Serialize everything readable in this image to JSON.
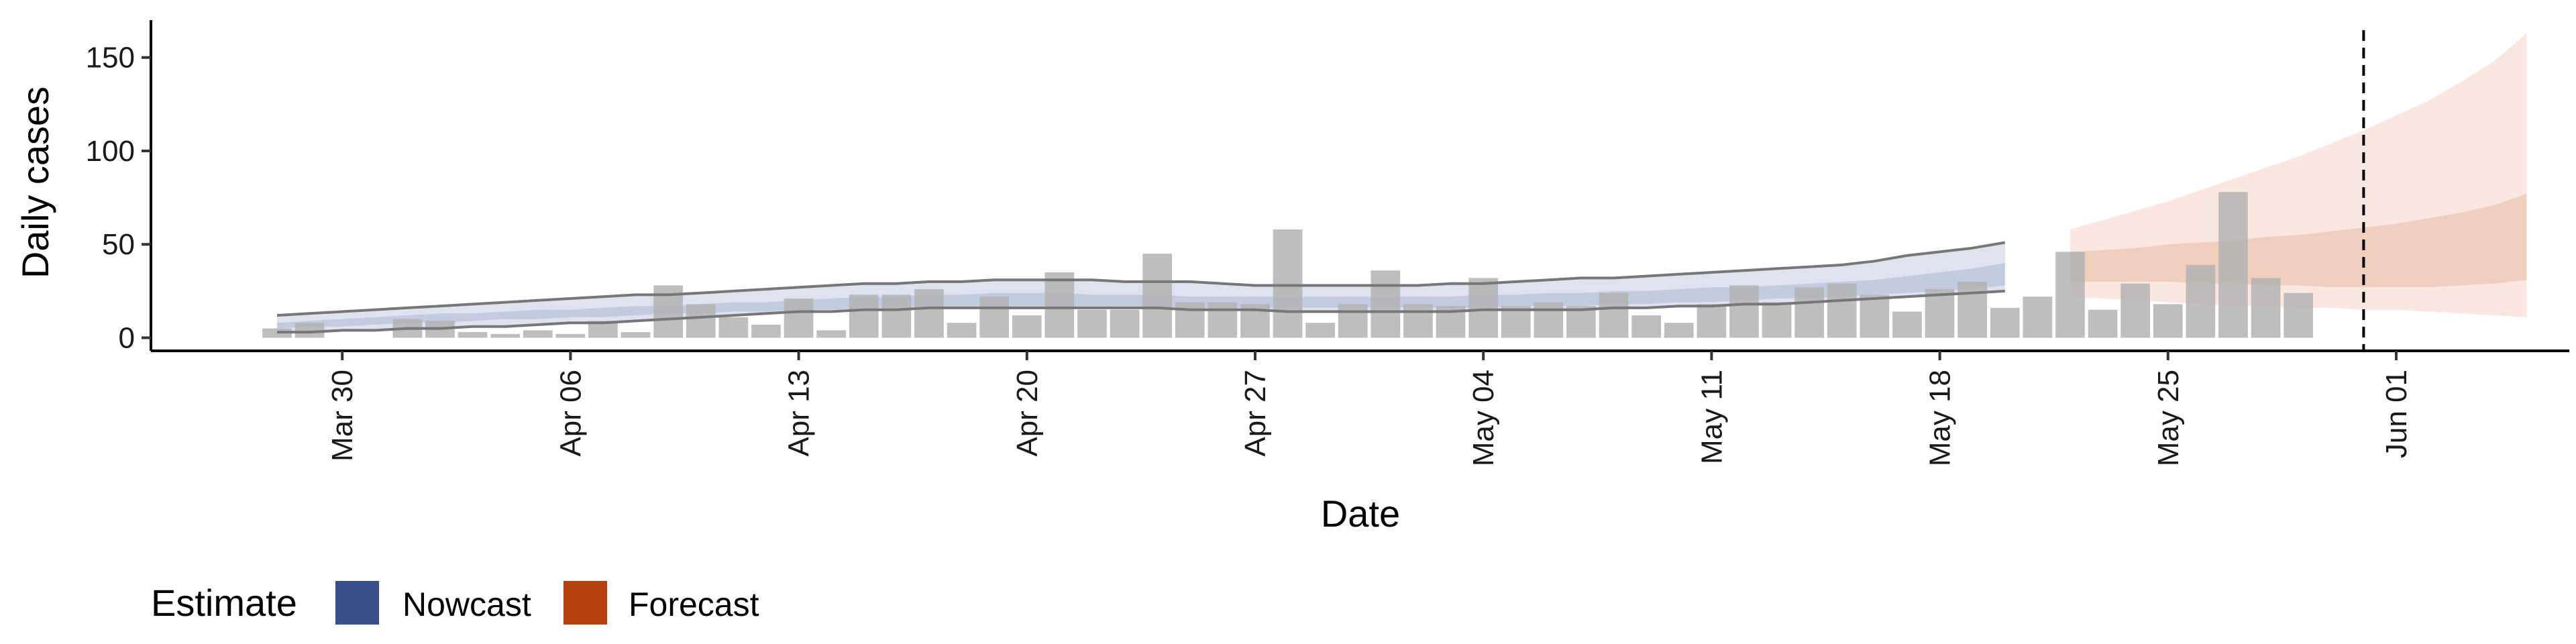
{
  "chart_data": {
    "type": "bar",
    "xlabel": "Date",
    "ylabel": "Daily cases",
    "ylim": [
      -7,
      170
    ],
    "y_ticks": [
      0,
      50,
      100,
      150
    ],
    "x_start": "2020-03-28",
    "x_ticks": [
      {
        "date": "2020-03-30",
        "label": "Mar 30"
      },
      {
        "date": "2020-04-06",
        "label": "Apr 06"
      },
      {
        "date": "2020-04-13",
        "label": "Apr 13"
      },
      {
        "date": "2020-04-20",
        "label": "Apr 20"
      },
      {
        "date": "2020-04-27",
        "label": "Apr 27"
      },
      {
        "date": "2020-05-04",
        "label": "May 04"
      },
      {
        "date": "2020-05-11",
        "label": "May 11"
      },
      {
        "date": "2020-05-18",
        "label": "May 18"
      },
      {
        "date": "2020-05-25",
        "label": "May 25"
      },
      {
        "date": "2020-06-01",
        "label": "Jun 01"
      }
    ],
    "cases": [
      5,
      8,
      0,
      0,
      10,
      9,
      3,
      2,
      4,
      2,
      9,
      3,
      28,
      18,
      11,
      7,
      21,
      4,
      23,
      23,
      26,
      8,
      22,
      12,
      35,
      15,
      15,
      45,
      19,
      19,
      18,
      58,
      8,
      18,
      36,
      18,
      17,
      32,
      17,
      19,
      17,
      24,
      12,
      8,
      18,
      28,
      19,
      27,
      29,
      23,
      14,
      26,
      30,
      16,
      22,
      46,
      15,
      29,
      18,
      39,
      78,
      32,
      24
    ],
    "nowcast": {
      "start": "2020-03-28",
      "upper90": [
        12,
        13,
        14,
        15,
        16,
        17,
        18,
        19,
        20,
        21,
        22,
        23,
        23,
        24,
        25,
        26,
        27,
        28,
        29,
        29,
        30,
        30,
        31,
        31,
        31,
        31,
        30,
        30,
        30,
        29,
        28,
        28,
        28,
        28,
        28,
        28,
        29,
        29,
        30,
        31,
        32,
        32,
        33,
        34,
        35,
        36,
        37,
        38,
        39,
        41,
        44,
        46,
        48,
        51
      ],
      "upper50": [
        8,
        9,
        10,
        11,
        12,
        13,
        13,
        14,
        15,
        15,
        16,
        17,
        17,
        18,
        19,
        19,
        20,
        21,
        22,
        22,
        23,
        23,
        24,
        24,
        24,
        23,
        23,
        23,
        22,
        22,
        22,
        22,
        22,
        22,
        22,
        22,
        22,
        23,
        23,
        24,
        24,
        25,
        25,
        26,
        27,
        27,
        28,
        29,
        30,
        31,
        33,
        35,
        37,
        40
      ],
      "lower50": [
        5,
        6,
        6,
        7,
        8,
        8,
        9,
        10,
        10,
        11,
        11,
        12,
        13,
        13,
        14,
        14,
        15,
        15,
        16,
        16,
        17,
        17,
        17,
        17,
        17,
        17,
        17,
        17,
        16,
        16,
        16,
        16,
        16,
        16,
        16,
        16,
        16,
        16,
        17,
        17,
        17,
        18,
        18,
        19,
        19,
        20,
        21,
        21,
        22,
        23,
        24,
        25,
        26,
        28
      ],
      "lower90": [
        3,
        3,
        4,
        4,
        5,
        5,
        6,
        6,
        7,
        8,
        8,
        9,
        10,
        11,
        12,
        13,
        14,
        14,
        15,
        15,
        16,
        16,
        16,
        16,
        16,
        16,
        16,
        16,
        15,
        15,
        15,
        14,
        14,
        14,
        14,
        14,
        14,
        15,
        15,
        15,
        15,
        16,
        16,
        17,
        17,
        18,
        18,
        19,
        20,
        21,
        22,
        23,
        24,
        25
      ]
    },
    "forecast": {
      "start": "2020-05-22",
      "upper90": [
        58,
        63,
        68,
        73,
        79,
        85,
        91,
        97,
        104,
        111,
        119,
        127,
        137,
        148,
        163
      ],
      "upper50": [
        46,
        47,
        48,
        50,
        51,
        52,
        54,
        55,
        57,
        59,
        61,
        64,
        67,
        71,
        77
      ],
      "lower50": [
        30,
        30,
        30,
        30,
        29,
        29,
        28,
        28,
        27,
        27,
        27,
        27,
        28,
        29,
        31
      ],
      "lower90": [
        22,
        21,
        20,
        19,
        18,
        17,
        17,
        16,
        16,
        15,
        15,
        14,
        13,
        12,
        11
      ]
    },
    "cutoff_date": "2020-05-31",
    "legend": {
      "title": "Estimate",
      "position": "bottom-left",
      "items": [
        {
          "label": "Nowcast",
          "color": "#3A4E8C"
        },
        {
          "label": "Forecast",
          "color": "#B5410F"
        }
      ]
    },
    "colors": {
      "bars": "#b3b3b3",
      "nowcast_band90": "#dfe3ef",
      "nowcast_band50": "#c3cbe0",
      "forecast_band90": "#fae8e0",
      "forecast_band50": "#f0cfbf",
      "interval_line": "#777777"
    },
    "grid": false
  }
}
